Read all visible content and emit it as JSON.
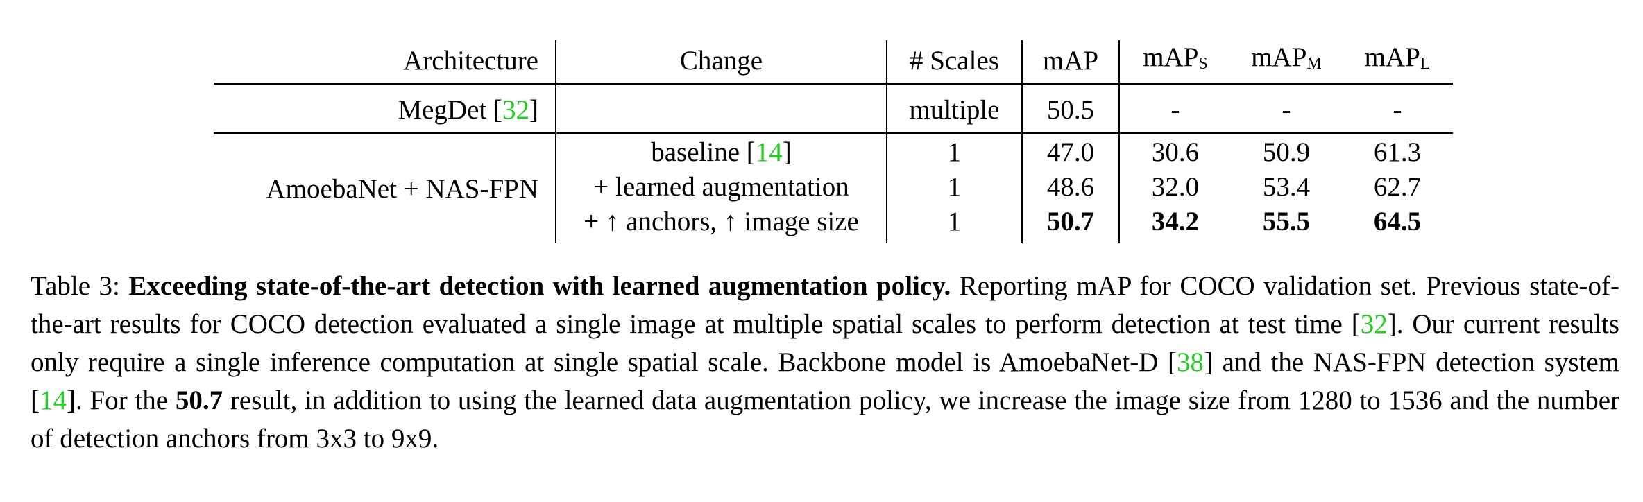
{
  "table": {
    "headers": {
      "architecture": "Architecture",
      "change": "Change",
      "scales": "# Scales",
      "map": "mAP",
      "map_s_base": "mAP",
      "map_s_sub": "S",
      "map_m_base": "mAP",
      "map_m_sub": "M",
      "map_l_base": "mAP",
      "map_l_sub": "L"
    },
    "megdet": {
      "architecture": "MegDet",
      "cite_open": " [",
      "cite": "32",
      "cite_close": "]",
      "change": "",
      "scales": "multiple",
      "map": "50.5",
      "map_s": "-",
      "map_m": "-",
      "map_l": "-"
    },
    "amoeba": {
      "architecture": "AmoebaNet + NAS-FPN",
      "rows": [
        {
          "change": "baseline",
          "cite_open": " [",
          "cite": "14",
          "cite_close": "]",
          "scales": "1",
          "map": "47.0",
          "map_s": "30.6",
          "map_m": "50.9",
          "map_l": "61.3"
        },
        {
          "change": "+ learned augmentation",
          "scales": "1",
          "map": "48.6",
          "map_s": "32.0",
          "map_m": "53.4",
          "map_l": "62.7"
        },
        {
          "change": "+ ↑ anchors, ↑ image size",
          "scales": "1",
          "map": "50.7",
          "map_s": "34.2",
          "map_m": "55.5",
          "map_l": "64.5"
        }
      ]
    }
  },
  "caption": {
    "label": "Table 3: ",
    "bold_title": "Exceeding state-of-the-art detection with learned augmentation policy.",
    "text1": " Reporting mAP for COCO validation set. Previous state-of-the-art results for COCO detection evaluated a single image at multiple spatial scales to perform detection at test time [",
    "cite1": "32",
    "text2": "].  Our current results only require a single inference computation at single spatial scale.  Backbone model is AmoebaNet-D [",
    "cite2": "38",
    "text3": "] and the NAS-FPN detection system [",
    "cite3": "14",
    "text4": "].  For the ",
    "bold_value": "50.7",
    "text5": " result, in addition to using the learned data augmentation policy, we increase the image size from 1280 to 1536 and the number of detection anchors from 3x3 to 9x9."
  }
}
